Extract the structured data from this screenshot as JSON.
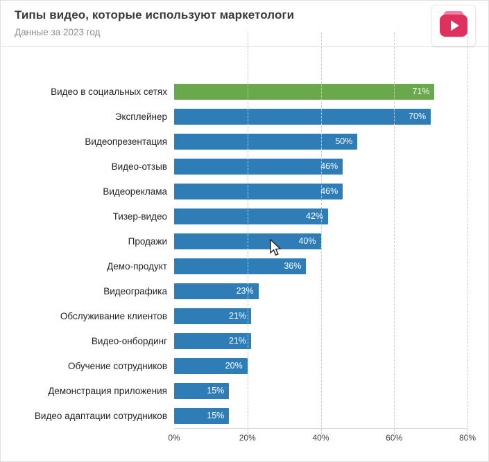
{
  "header": {
    "title": "Типы видео, которые используют маркетологи",
    "subtitle": "Данные за 2023 год",
    "logo_icon": "video-play-icon",
    "logo_color": "#e0315e"
  },
  "chart_data": {
    "type": "bar",
    "orientation": "horizontal",
    "title": "Типы видео, которые используют маркетологи",
    "subtitle": "Данные за 2023 год",
    "categories": [
      "Видео в социальных сетях",
      "Эксплейнер",
      "Видеопрезентация",
      "Видео-отзыв",
      "Видеореклама",
      "Тизер-видео",
      "Продажи",
      "Демо-продукт",
      "Видеографика",
      "Обслуживание клиентов",
      "Видео-онбординг",
      "Обучение сотрудников",
      "Демонстрация приложения",
      "Видео адаптации сотрудников"
    ],
    "values": [
      71,
      70,
      50,
      46,
      46,
      42,
      40,
      36,
      23,
      21,
      21,
      20,
      15,
      15
    ],
    "value_suffix": "%",
    "xlim": [
      0,
      80
    ],
    "x_ticks": [
      "0%",
      "20%",
      "40%",
      "60%",
      "80%"
    ],
    "bar_color": "#2e7db6",
    "highlight_color": "#6aa84c",
    "highlight_index": 0,
    "grid": "vertical-dashed",
    "legend": "none"
  }
}
